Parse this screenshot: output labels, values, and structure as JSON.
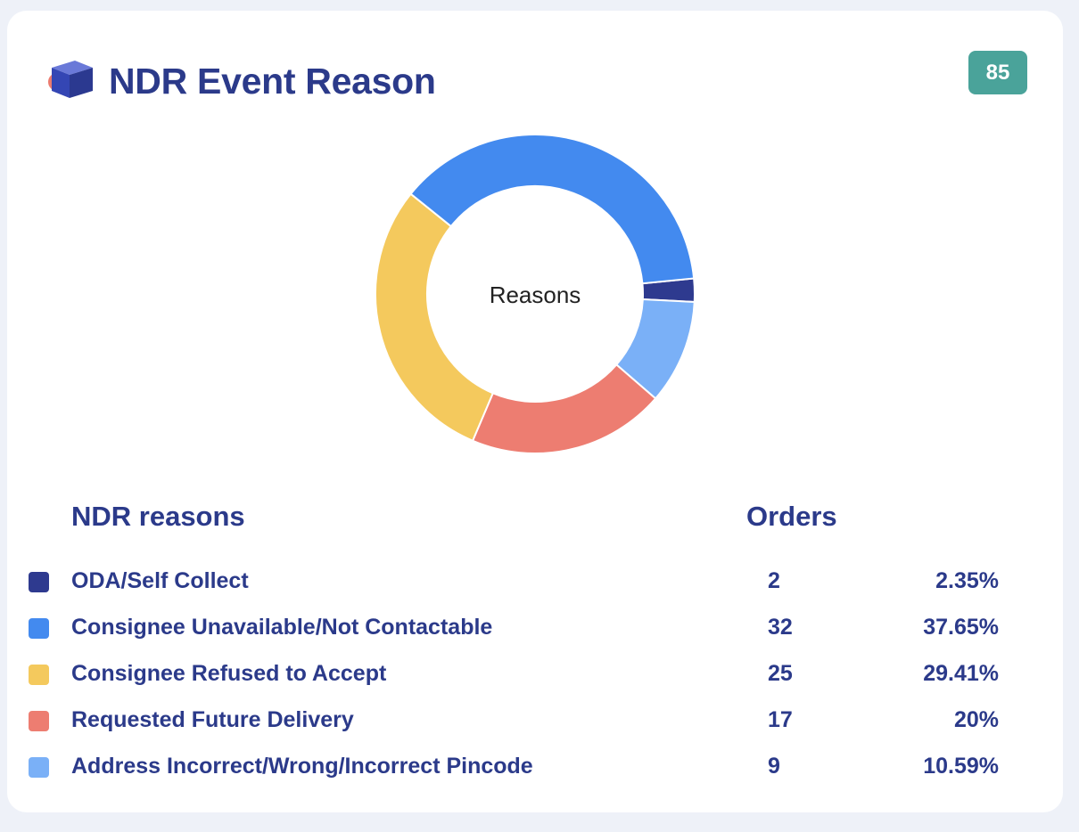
{
  "header": {
    "title": "NDR Event Reason",
    "total_badge": "85",
    "icon": "cube-icon"
  },
  "chart_data": {
    "type": "pie",
    "donut": true,
    "center_label": "Reasons",
    "slices": [
      {
        "label": "ODA/Self Collect",
        "value": 2,
        "percent": "2.35%",
        "color": "#2e3a8f"
      },
      {
        "label": "Consignee Unavailable/Not Contactable",
        "value": 32,
        "percent": "37.65%",
        "color": "#438aef"
      },
      {
        "label": "Consignee Refused to Accept",
        "value": 25,
        "percent": "29.41%",
        "color": "#f4c95d"
      },
      {
        "label": "Requested Future Delivery",
        "value": 17,
        "percent": "20%",
        "color": "#ed7d71"
      },
      {
        "label": "Address Incorrect/Wrong/Incorrect Pincode",
        "value": 9,
        "percent": "10.59%",
        "color": "#7ab0f7"
      }
    ],
    "draw_order": [
      0,
      4,
      3,
      2,
      1
    ]
  },
  "table": {
    "col_reason": "NDR reasons",
    "col_orders": "Orders"
  },
  "colors": {
    "title": "#2b3a8a",
    "badge": "#4aa39a",
    "background": "#eef1f8"
  }
}
